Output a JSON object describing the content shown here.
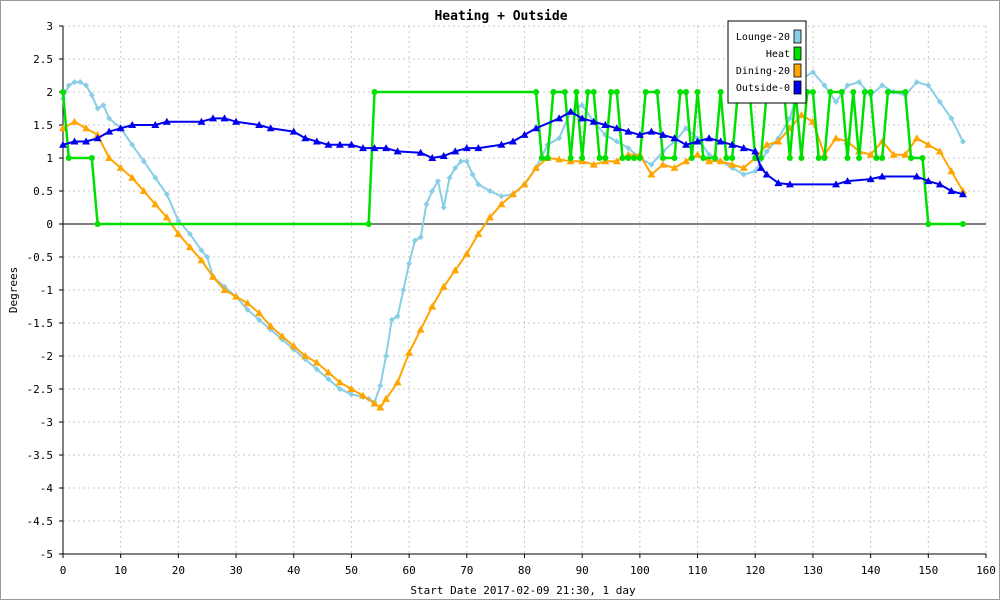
{
  "chart_data": {
    "type": "line",
    "title": "Heating + Outside",
    "xlabel": "Start Date 2017-02-09 21:30, 1 day",
    "ylabel": "Degrees",
    "xlim": [
      0,
      160
    ],
    "ylim": [
      -5,
      3
    ],
    "xticks": [
      0,
      10,
      20,
      30,
      40,
      50,
      60,
      70,
      80,
      90,
      100,
      110,
      120,
      130,
      140,
      150,
      160
    ],
    "yticks": [
      -5,
      -4.5,
      -4,
      -3.5,
      -3,
      -2.5,
      -2,
      -1.5,
      -1,
      -0.5,
      0,
      0.5,
      1,
      1.5,
      2,
      2.5,
      3
    ],
    "grid": true,
    "legend_position": "top-right",
    "series": [
      {
        "name": "Lounge-20",
        "color": "#87cee6",
        "marker": "diamond",
        "points": [
          [
            0,
            1.9
          ],
          [
            1,
            2.1
          ],
          [
            2,
            2.15
          ],
          [
            3,
            2.15
          ],
          [
            4,
            2.1
          ],
          [
            5,
            1.95
          ],
          [
            6,
            1.75
          ],
          [
            7,
            1.8
          ],
          [
            8,
            1.6
          ],
          [
            10,
            1.45
          ],
          [
            12,
            1.2
          ],
          [
            14,
            0.95
          ],
          [
            16,
            0.7
          ],
          [
            18,
            0.45
          ],
          [
            20,
            0.05
          ],
          [
            22,
            -0.15
          ],
          [
            24,
            -0.4
          ],
          [
            25,
            -0.5
          ],
          [
            26,
            -0.8
          ],
          [
            28,
            -0.95
          ],
          [
            30,
            -1.1
          ],
          [
            32,
            -1.3
          ],
          [
            34,
            -1.45
          ],
          [
            36,
            -1.6
          ],
          [
            38,
            -1.75
          ],
          [
            40,
            -1.9
          ],
          [
            42,
            -2.05
          ],
          [
            44,
            -2.2
          ],
          [
            46,
            -2.35
          ],
          [
            48,
            -2.5
          ],
          [
            50,
            -2.58
          ],
          [
            52,
            -2.62
          ],
          [
            53,
            -2.65
          ],
          [
            54,
            -2.7
          ],
          [
            55,
            -2.45
          ],
          [
            56,
            -2.0
          ],
          [
            57,
            -1.45
          ],
          [
            58,
            -1.4
          ],
          [
            59,
            -1.0
          ],
          [
            60,
            -0.6
          ],
          [
            61,
            -0.25
          ],
          [
            62,
            -0.2
          ],
          [
            63,
            0.3
          ],
          [
            64,
            0.5
          ],
          [
            65,
            0.65
          ],
          [
            66,
            0.25
          ],
          [
            67,
            0.7
          ],
          [
            68,
            0.85
          ],
          [
            69,
            0.95
          ],
          [
            70,
            0.95
          ],
          [
            71,
            0.75
          ],
          [
            72,
            0.6
          ],
          [
            74,
            0.5
          ],
          [
            76,
            0.42
          ],
          [
            78,
            0.45
          ],
          [
            80,
            0.6
          ],
          [
            82,
            0.85
          ],
          [
            84,
            1.2
          ],
          [
            86,
            1.3
          ],
          [
            88,
            1.7
          ],
          [
            90,
            1.8
          ],
          [
            92,
            1.55
          ],
          [
            94,
            1.35
          ],
          [
            96,
            1.25
          ],
          [
            98,
            1.15
          ],
          [
            100,
            1.0
          ],
          [
            102,
            0.9
          ],
          [
            104,
            1.1
          ],
          [
            106,
            1.25
          ],
          [
            108,
            1.45
          ],
          [
            110,
            1.3
          ],
          [
            112,
            1.05
          ],
          [
            114,
            0.95
          ],
          [
            116,
            0.85
          ],
          [
            118,
            0.75
          ],
          [
            120,
            0.8
          ],
          [
            122,
            1.1
          ],
          [
            124,
            1.3
          ],
          [
            126,
            1.6
          ],
          [
            128,
            2.2
          ],
          [
            130,
            2.3
          ],
          [
            132,
            2.1
          ],
          [
            134,
            1.85
          ],
          [
            136,
            2.1
          ],
          [
            138,
            2.15
          ],
          [
            140,
            1.95
          ],
          [
            142,
            2.1
          ],
          [
            144,
            2.0
          ],
          [
            146,
            1.95
          ],
          [
            148,
            2.15
          ],
          [
            150,
            2.1
          ],
          [
            152,
            1.85
          ],
          [
            154,
            1.6
          ],
          [
            156,
            1.25
          ]
        ]
      },
      {
        "name": "Heat",
        "color": "#00e000",
        "marker": "circle",
        "points": [
          [
            0,
            2.0
          ],
          [
            1,
            1.0
          ],
          [
            5,
            1.0
          ],
          [
            6,
            0.0
          ],
          [
            53,
            0.0
          ],
          [
            54,
            2.0
          ],
          [
            82,
            2.0
          ],
          [
            83,
            1.0
          ],
          [
            84,
            1.0
          ],
          [
            85,
            2.0
          ],
          [
            87,
            2.0
          ],
          [
            88,
            1.0
          ],
          [
            89,
            2.0
          ],
          [
            90,
            1.0
          ],
          [
            91,
            2.0
          ],
          [
            92,
            2.0
          ],
          [
            93,
            1.0
          ],
          [
            94,
            1.0
          ],
          [
            95,
            2.0
          ],
          [
            96,
            2.0
          ],
          [
            97,
            1.0
          ],
          [
            98,
            1.0
          ],
          [
            99,
            1.0
          ],
          [
            100,
            1.0
          ],
          [
            101,
            2.0
          ],
          [
            103,
            2.0
          ],
          [
            104,
            1.0
          ],
          [
            106,
            1.0
          ],
          [
            107,
            2.0
          ],
          [
            108,
            2.0
          ],
          [
            109,
            1.0
          ],
          [
            110,
            2.0
          ],
          [
            111,
            1.0
          ],
          [
            113,
            1.0
          ],
          [
            114,
            2.0
          ],
          [
            115,
            1.0
          ],
          [
            116,
            1.0
          ],
          [
            117,
            2.0
          ],
          [
            119,
            2.0
          ],
          [
            120,
            1.0
          ],
          [
            121,
            1.0
          ],
          [
            122,
            2.0
          ],
          [
            125,
            2.0
          ],
          [
            126,
            1.0
          ],
          [
            127,
            2.0
          ],
          [
            128,
            1.0
          ],
          [
            129,
            2.0
          ],
          [
            130,
            2.0
          ],
          [
            131,
            1.0
          ],
          [
            132,
            1.0
          ],
          [
            133,
            2.0
          ],
          [
            135,
            2.0
          ],
          [
            136,
            1.0
          ],
          [
            137,
            2.0
          ],
          [
            138,
            1.0
          ],
          [
            139,
            2.0
          ],
          [
            140,
            2.0
          ],
          [
            141,
            1.0
          ],
          [
            142,
            1.0
          ],
          [
            143,
            2.0
          ],
          [
            146,
            2.0
          ],
          [
            147,
            1.0
          ],
          [
            149,
            1.0
          ],
          [
            150,
            0.0
          ],
          [
            156,
            0.0
          ]
        ]
      },
      {
        "name": "Dining-20",
        "color": "#ffa500",
        "marker": "triangle",
        "points": [
          [
            0,
            1.45
          ],
          [
            2,
            1.55
          ],
          [
            4,
            1.45
          ],
          [
            6,
            1.35
          ],
          [
            8,
            1.0
          ],
          [
            10,
            0.85
          ],
          [
            12,
            0.7
          ],
          [
            14,
            0.5
          ],
          [
            16,
            0.3
          ],
          [
            18,
            0.1
          ],
          [
            20,
            -0.15
          ],
          [
            22,
            -0.35
          ],
          [
            24,
            -0.55
          ],
          [
            26,
            -0.8
          ],
          [
            28,
            -1.0
          ],
          [
            30,
            -1.1
          ],
          [
            32,
            -1.2
          ],
          [
            34,
            -1.35
          ],
          [
            36,
            -1.55
          ],
          [
            38,
            -1.7
          ],
          [
            40,
            -1.85
          ],
          [
            42,
            -2.0
          ],
          [
            44,
            -2.1
          ],
          [
            46,
            -2.25
          ],
          [
            48,
            -2.4
          ],
          [
            50,
            -2.5
          ],
          [
            52,
            -2.6
          ],
          [
            54,
            -2.72
          ],
          [
            55,
            -2.78
          ],
          [
            56,
            -2.65
          ],
          [
            58,
            -2.4
          ],
          [
            60,
            -1.95
          ],
          [
            62,
            -1.6
          ],
          [
            64,
            -1.25
          ],
          [
            66,
            -0.95
          ],
          [
            68,
            -0.7
          ],
          [
            70,
            -0.45
          ],
          [
            72,
            -0.15
          ],
          [
            74,
            0.1
          ],
          [
            76,
            0.3
          ],
          [
            78,
            0.45
          ],
          [
            80,
            0.6
          ],
          [
            82,
            0.85
          ],
          [
            84,
            1.0
          ],
          [
            86,
            0.98
          ],
          [
            88,
            0.95
          ],
          [
            90,
            0.95
          ],
          [
            92,
            0.9
          ],
          [
            94,
            0.95
          ],
          [
            96,
            0.95
          ],
          [
            98,
            1.05
          ],
          [
            100,
            1.05
          ],
          [
            102,
            0.75
          ],
          [
            104,
            0.9
          ],
          [
            106,
            0.85
          ],
          [
            108,
            0.95
          ],
          [
            110,
            1.05
          ],
          [
            112,
            0.95
          ],
          [
            114,
            0.95
          ],
          [
            116,
            0.9
          ],
          [
            118,
            0.85
          ],
          [
            120,
            1.0
          ],
          [
            122,
            1.2
          ],
          [
            124,
            1.25
          ],
          [
            126,
            1.45
          ],
          [
            128,
            1.65
          ],
          [
            130,
            1.55
          ],
          [
            132,
            1.05
          ],
          [
            134,
            1.3
          ],
          [
            136,
            1.25
          ],
          [
            138,
            1.1
          ],
          [
            140,
            1.05
          ],
          [
            142,
            1.25
          ],
          [
            144,
            1.05
          ],
          [
            146,
            1.05
          ],
          [
            148,
            1.3
          ],
          [
            150,
            1.2
          ],
          [
            152,
            1.1
          ],
          [
            154,
            0.8
          ],
          [
            156,
            0.5
          ]
        ]
      },
      {
        "name": "Outside-0",
        "color": "#0000ee",
        "marker": "triangle",
        "points": [
          [
            0,
            1.2
          ],
          [
            2,
            1.25
          ],
          [
            4,
            1.25
          ],
          [
            6,
            1.3
          ],
          [
            8,
            1.4
          ],
          [
            10,
            1.45
          ],
          [
            12,
            1.5
          ],
          [
            16,
            1.5
          ],
          [
            18,
            1.55
          ],
          [
            24,
            1.55
          ],
          [
            26,
            1.6
          ],
          [
            28,
            1.6
          ],
          [
            30,
            1.55
          ],
          [
            34,
            1.5
          ],
          [
            36,
            1.45
          ],
          [
            40,
            1.4
          ],
          [
            42,
            1.3
          ],
          [
            44,
            1.25
          ],
          [
            46,
            1.2
          ],
          [
            48,
            1.2
          ],
          [
            50,
            1.2
          ],
          [
            52,
            1.15
          ],
          [
            54,
            1.15
          ],
          [
            56,
            1.15
          ],
          [
            58,
            1.1
          ],
          [
            62,
            1.08
          ],
          [
            64,
            1.0
          ],
          [
            66,
            1.03
          ],
          [
            68,
            1.1
          ],
          [
            70,
            1.15
          ],
          [
            72,
            1.15
          ],
          [
            76,
            1.2
          ],
          [
            78,
            1.25
          ],
          [
            80,
            1.35
          ],
          [
            82,
            1.45
          ],
          [
            86,
            1.6
          ],
          [
            88,
            1.7
          ],
          [
            90,
            1.6
          ],
          [
            92,
            1.55
          ],
          [
            94,
            1.5
          ],
          [
            96,
            1.45
          ],
          [
            98,
            1.4
          ],
          [
            100,
            1.35
          ],
          [
            102,
            1.4
          ],
          [
            104,
            1.35
          ],
          [
            106,
            1.3
          ],
          [
            108,
            1.2
          ],
          [
            110,
            1.25
          ],
          [
            112,
            1.3
          ],
          [
            114,
            1.25
          ],
          [
            116,
            1.2
          ],
          [
            118,
            1.15
          ],
          [
            120,
            1.1
          ],
          [
            121,
            0.85
          ],
          [
            122,
            0.75
          ],
          [
            124,
            0.62
          ],
          [
            126,
            0.6
          ],
          [
            134,
            0.6
          ],
          [
            136,
            0.65
          ],
          [
            140,
            0.68
          ],
          [
            142,
            0.72
          ],
          [
            148,
            0.72
          ],
          [
            150,
            0.65
          ],
          [
            152,
            0.6
          ],
          [
            154,
            0.5
          ],
          [
            156,
            0.45
          ]
        ]
      }
    ]
  }
}
